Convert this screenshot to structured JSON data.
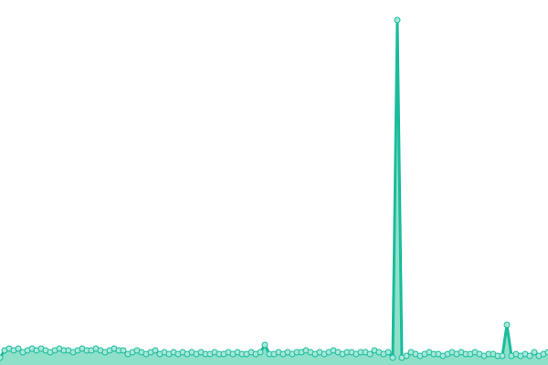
{
  "chart_data": {
    "type": "line",
    "color": "#1abc9c",
    "area_color": "#8fe0c9",
    "marker_color": "#a8e8d8",
    "area": true,
    "markers": true,
    "ylim": [
      0,
      100
    ],
    "values": [
      2,
      4,
      4.5,
      4,
      4.5,
      3.5,
      4,
      4.5,
      4,
      4.5,
      4,
      3.5,
      4,
      4.5,
      4,
      4,
      3.5,
      4,
      4.5,
      4,
      4,
      4.5,
      4,
      3.5,
      4,
      4.5,
      4,
      4,
      3,
      3.5,
      4,
      3.5,
      3,
      3.5,
      4,
      3,
      3.5,
      3,
      3.5,
      3,
      3.5,
      3,
      3.5,
      3,
      3.5,
      3,
      3,
      3.5,
      3,
      3,
      3.5,
      3,
      3.5,
      3,
      3,
      3.5,
      3,
      3.5,
      5.5,
      3,
      3,
      3.5,
      3,
      3.5,
      3,
      3.5,
      3.5,
      4,
      3.5,
      3,
      3.5,
      3,
      3.5,
      4,
      3.5,
      3,
      3.5,
      3.5,
      3,
      3.5,
      3.5,
      3,
      4,
      3.5,
      3,
      3.5,
      2,
      94.5,
      2,
      2.5,
      3.5,
      3,
      2.5,
      3,
      3.5,
      3,
      3,
      2.5,
      3,
      3.5,
      3,
      3.5,
      3,
      3,
      3.5,
      3,
      2.5,
      3,
      3,
      2.5,
      2.5,
      11,
      2.5,
      3,
      2.5,
      3,
      2.5,
      3.5,
      2.5,
      3,
      3.5
    ]
  }
}
